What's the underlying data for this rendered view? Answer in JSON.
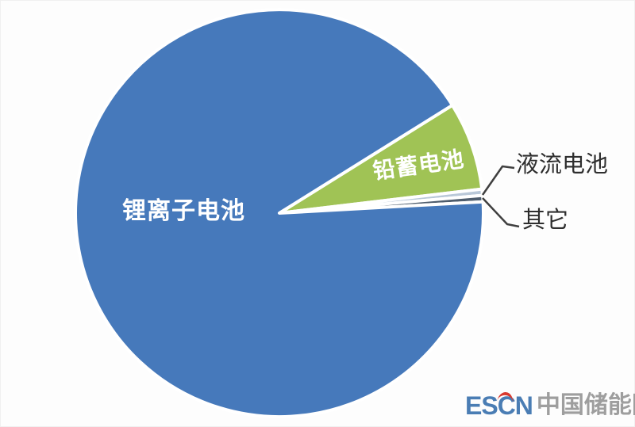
{
  "chart_data": {
    "type": "pie",
    "title": "",
    "legend_position": "none",
    "start_angle_deg": -32,
    "values_are_estimated_percent": true,
    "slices": [
      {
        "key": "lead-acid",
        "label": "铅蓄电池",
        "value": 7,
        "color": "#a0c355",
        "label_color": "#ffffff"
      },
      {
        "key": "flow-battery",
        "label": "液流电池",
        "value": 0.5,
        "color": "#b9c8d8",
        "label_color": "#2e2e2e"
      },
      {
        "key": "others",
        "label": "其它",
        "value": 0.5,
        "color": "#4e5d6d",
        "label_color": "#2e2e2e"
      },
      {
        "key": "lithium-ion",
        "label": "锂离子电池",
        "value": 92,
        "color": "#4679bb",
        "label_color": "#ffffff"
      }
    ],
    "pie_border_color": "#ffffff",
    "leader_line_color": "#3f3f3f"
  },
  "watermark": {
    "logo": "ESCN",
    "site": "中国储能网",
    "logo_color": "#4a7db4",
    "site_color": "#9e9e9e",
    "accent_color": "#d9392e"
  }
}
